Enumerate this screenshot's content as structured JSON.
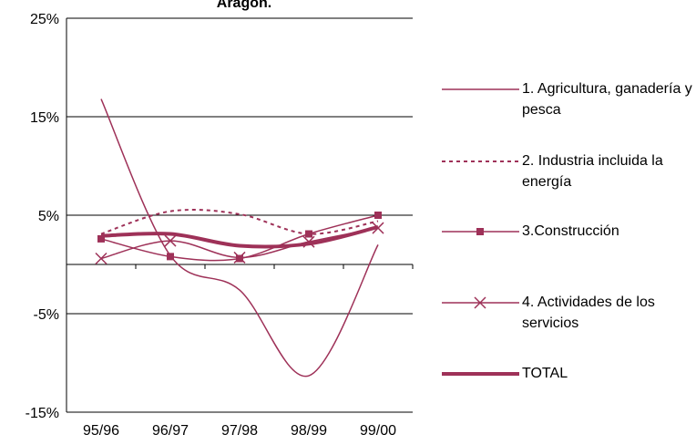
{
  "chart_data": {
    "type": "line",
    "title": "Aragón.",
    "categories": [
      "95/96",
      "96/97",
      "97/98",
      "98/99",
      "99/00"
    ],
    "ylim": [
      -15,
      25
    ],
    "yticks": [
      {
        "value": -15,
        "label": "-15%"
      },
      {
        "value": -5,
        "label": "-5%"
      },
      {
        "value": 5,
        "label": "5%"
      },
      {
        "value": 15,
        "label": "15%"
      },
      {
        "value": 25,
        "label": "25%"
      }
    ],
    "grid": true,
    "smooth": true,
    "legend": "right",
    "series": [
      {
        "name": "1. Agricultura, ganadería y pesca",
        "color": "#9e3158",
        "width": 1.5,
        "values": [
          16.8,
          0.9,
          -2.6,
          -11.3,
          2.0
        ]
      },
      {
        "name": "2. Industria incluida la energía",
        "color": "#9e3158",
        "width": 2,
        "dashed": true,
        "values": [
          3.1,
          5.4,
          5.1,
          3.1,
          4.4
        ]
      },
      {
        "name": "3.Construcción",
        "color": "#9e3158",
        "width": 1.5,
        "marker": "square",
        "values": [
          2.6,
          0.8,
          0.6,
          3.1,
          5.0
        ]
      },
      {
        "name": "4. Actividades de los servicios",
        "color": "#9e3158",
        "width": 1.5,
        "marker": "x",
        "values": [
          0.6,
          2.4,
          0.7,
          2.3,
          3.7
        ]
      },
      {
        "name": "TOTAL",
        "color": "#9e3158",
        "width": 4,
        "values": [
          2.9,
          3.1,
          1.9,
          2.1,
          3.8
        ]
      }
    ]
  }
}
